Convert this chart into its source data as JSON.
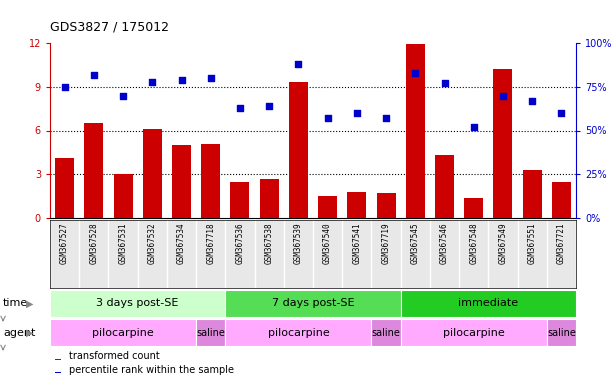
{
  "title": "GDS3827 / 175012",
  "samples": [
    "GSM367527",
    "GSM367528",
    "GSM367531",
    "GSM367532",
    "GSM367534",
    "GSM367718",
    "GSM367536",
    "GSM367538",
    "GSM367539",
    "GSM367540",
    "GSM367541",
    "GSM367719",
    "GSM367545",
    "GSM367546",
    "GSM367548",
    "GSM367549",
    "GSM367551",
    "GSM367721"
  ],
  "transformed_count": [
    4.1,
    6.5,
    3.0,
    6.1,
    5.0,
    5.1,
    2.5,
    2.7,
    9.3,
    1.5,
    1.8,
    1.7,
    11.9,
    4.3,
    1.4,
    10.2,
    3.3,
    2.5
  ],
  "percentile_rank": [
    75,
    82,
    70,
    78,
    79,
    80,
    63,
    64,
    88,
    57,
    60,
    57,
    83,
    77,
    52,
    70,
    67,
    60
  ],
  "ylim_left": [
    0,
    12
  ],
  "ylim_right": [
    0,
    100
  ],
  "yticks_left": [
    0,
    3,
    6,
    9,
    12
  ],
  "yticks_right": [
    0,
    25,
    50,
    75,
    100
  ],
  "bar_color": "#cc0000",
  "dot_color": "#0000cc",
  "time_groups": [
    {
      "label": "3 days post-SE",
      "start": 0,
      "end": 5,
      "color": "#ccffcc"
    },
    {
      "label": "7 days post-SE",
      "start": 6,
      "end": 11,
      "color": "#55dd55"
    },
    {
      "label": "immediate",
      "start": 12,
      "end": 17,
      "color": "#22cc22"
    }
  ],
  "agent_groups": [
    {
      "label": "pilocarpine",
      "start": 0,
      "end": 4,
      "color": "#ffaaff"
    },
    {
      "label": "saline",
      "start": 5,
      "end": 5,
      "color": "#dd88dd"
    },
    {
      "label": "pilocarpine",
      "start": 6,
      "end": 10,
      "color": "#ffaaff"
    },
    {
      "label": "saline",
      "start": 11,
      "end": 11,
      "color": "#dd88dd"
    },
    {
      "label": "pilocarpine",
      "start": 12,
      "end": 16,
      "color": "#ffaaff"
    },
    {
      "label": "saline",
      "start": 17,
      "end": 17,
      "color": "#dd88dd"
    }
  ],
  "legend_bar_label": "transformed count",
  "legend_dot_label": "percentile rank within the sample",
  "bg_color": "#ffffff",
  "left_axis_color": "#cc0000",
  "right_axis_color": "#0000cc",
  "title_color": "#000000",
  "title_fontsize": 9,
  "sample_label_fontsize": 5.5,
  "row_label_fontsize": 8,
  "group_label_fontsize": 8,
  "legend_fontsize": 7
}
